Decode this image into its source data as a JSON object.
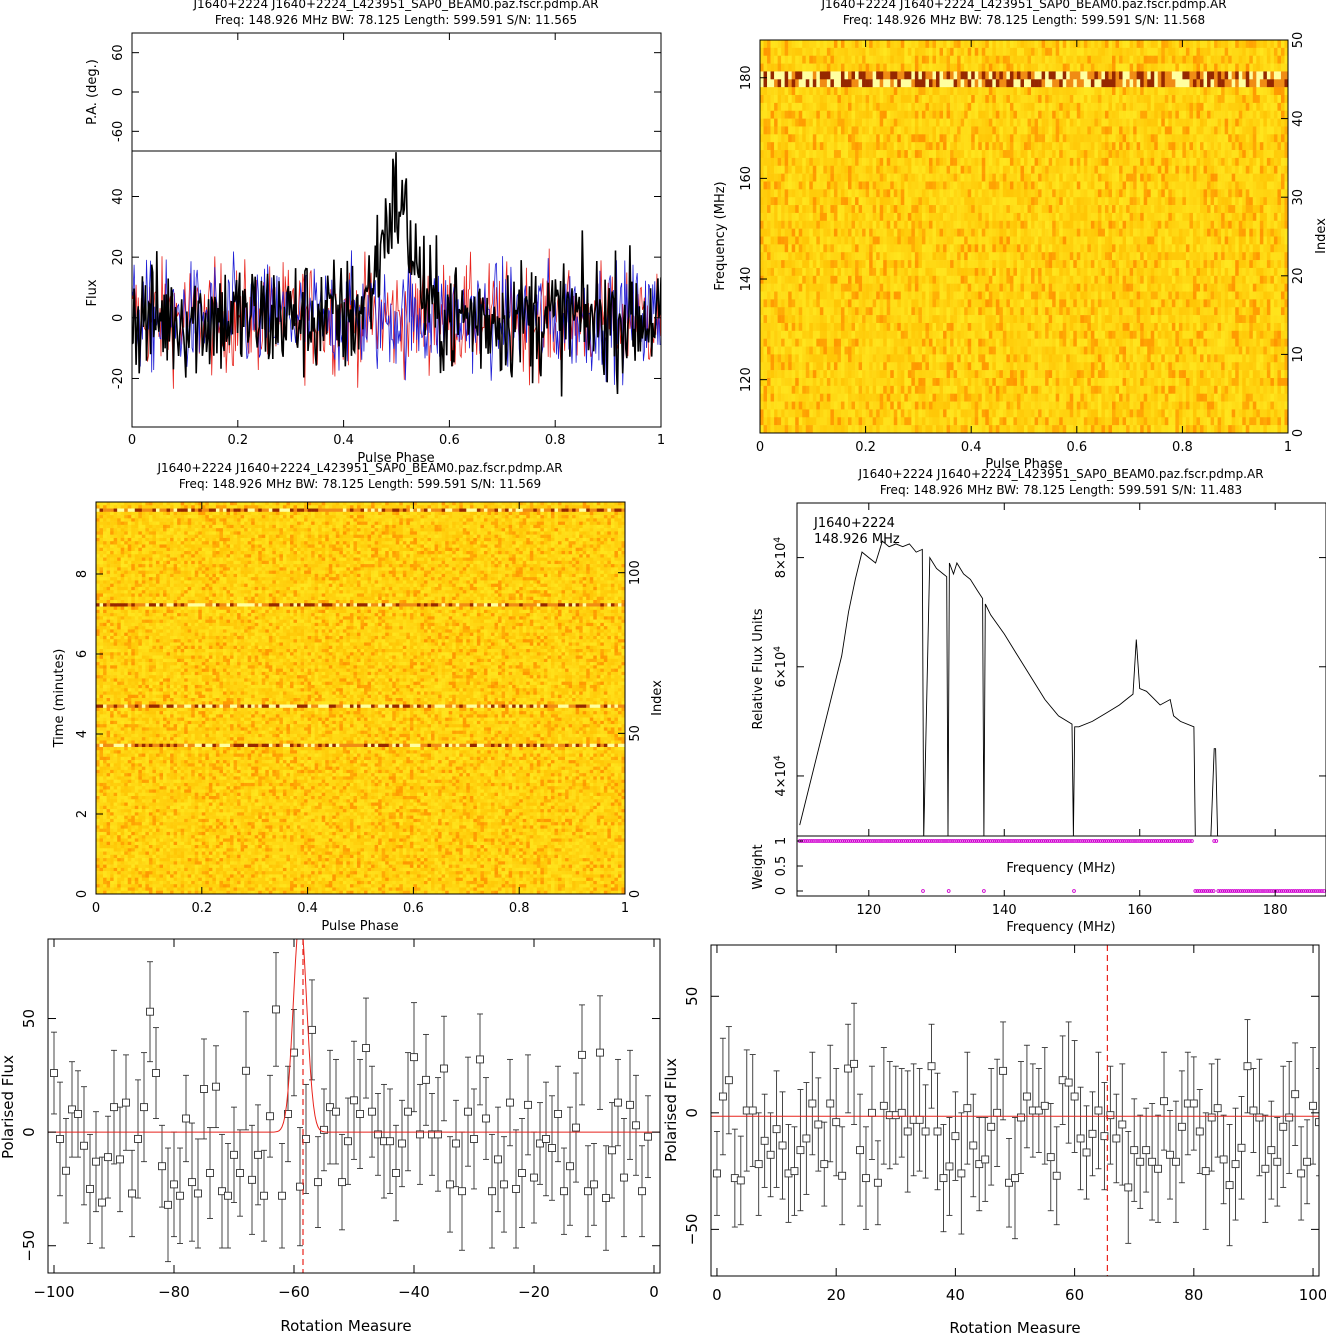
{
  "panels": {
    "profile": {
      "title1": "J1640+2224 J1640+2224_L423951_SAP0_BEAM0.paz.fscr.pdmp.AR",
      "title2": "Freq: 148.926 MHz BW: 78.125 Length: 599.591 S/N: 11.565",
      "pa_label": "P.A. (deg.)",
      "flux_label": "Flux",
      "xlabel": "Pulse Phase"
    },
    "freqphase": {
      "title1": "J1640+2224 J1640+2224_L423951_SAP0_BEAM0.paz.fscr.pdmp.AR",
      "title2": "Freq: 148.926 MHz BW: 78.125 Length: 599.591 S/N: 11.568",
      "ylabel": "Frequency (MHz)",
      "y2label": "Index",
      "xlabel": "Pulse Phase"
    },
    "timephase": {
      "title1": "J1640+2224 J1640+2224_L423951_SAP0_BEAM0.paz.fscr.pdmp.AR",
      "title2": "Freq: 148.926 MHz BW: 78.125 Length: 599.591 S/N: 11.569",
      "ylabel": "Time (minutes)",
      "y2label": "Index",
      "xlabel": "Pulse Phase"
    },
    "bandpass": {
      "title1": "J1640+2224 J1640+2224_L423951_SAP0_BEAM0.paz.fscr.pdmp.AR",
      "title2": "Freq: 148.926 MHz BW: 78.125 Length: 599.591 S/N: 11.483",
      "ylabel": "Relative Flux Units",
      "weight_label": "Weight",
      "inner_xlabel": "Frequency (MHz)",
      "xlabel": "Frequency (MHz)",
      "annot1": "J1640+2224",
      "annot2": "148.926 MHz"
    },
    "rm_neg": {
      "ylabel": "Polarised Flux",
      "xlabel": "Rotation Measure"
    },
    "rm_pos": {
      "ylabel": "Polarised Flux",
      "xlabel": "Rotation Measure"
    }
  },
  "colors": {
    "profile_I": "#000000",
    "profile_L": "#e8231c",
    "profile_V": "#1f1fd6",
    "rm_fit": "#e8231c",
    "weights": "#d000d0"
  },
  "chart_data": [
    {
      "type": "line",
      "panel": "profile",
      "x_range": [
        0,
        1
      ],
      "xticks": [
        "0",
        "0.2",
        "0.4",
        "0.6",
        "0.8",
        "1"
      ],
      "pa_yticks": [
        "-60",
        "0",
        "60"
      ],
      "pa_ylim": [
        -90,
        90
      ],
      "flux_yticks": [
        "-20",
        "0",
        "20",
        "40"
      ],
      "flux_ylim": [
        -36,
        55
      ],
      "series": [
        {
          "stat": "total intensity",
          "noise_sd": 10,
          "peak": {
            "center": 0.5,
            "amplitude": 38,
            "width": 0.03
          }
        },
        {
          "stat": "linear",
          "noise_sd": 9
        },
        {
          "stat": "circular",
          "noise_sd": 9
        }
      ]
    },
    {
      "type": "heatmap",
      "panel": "freqphase",
      "x_range": [
        0,
        1
      ],
      "xticks": [
        "0",
        "0.2",
        "0.4",
        "0.6",
        "0.8",
        "1"
      ],
      "ylim": [
        109.4,
        187.5
      ],
      "yticks": [
        "120",
        "140",
        "160",
        "180"
      ],
      "y2lim": [
        0,
        50
      ],
      "y2ticks": [
        "0",
        "10",
        "20",
        "30",
        "40",
        "50"
      ],
      "rfi_channels_mhz": [
        178.3,
        179.9
      ]
    },
    {
      "type": "heatmap",
      "panel": "timephase",
      "x_range": [
        0,
        1
      ],
      "xticks": [
        "0",
        "0.2",
        "0.4",
        "0.6",
        "0.8",
        "1"
      ],
      "ylim": [
        0,
        9.8
      ],
      "yticks": [
        "0",
        "2",
        "4",
        "6",
        "8"
      ],
      "y2lim": [
        0,
        122
      ],
      "y2ticks": [
        "0",
        "50",
        "100"
      ],
      "rfi_times_min": [
        3.7,
        4.7,
        7.25,
        9.6
      ]
    },
    {
      "type": "line",
      "panel": "bandpass",
      "xlim": [
        109.4,
        187.5
      ],
      "xticks": [
        "120",
        "140",
        "160",
        "180"
      ],
      "ylim": [
        29000,
        90000
      ],
      "yticks": [
        {
          "mant": "4",
          "exp": "4",
          "value": 40000
        },
        {
          "mant": "6",
          "exp": "4",
          "value": 60000
        },
        {
          "mant": "8",
          "exp": "4",
          "value": 80000
        }
      ],
      "weight_yticks": [
        "0",
        "0.5",
        "1"
      ],
      "freq": [
        109.8,
        112,
        114,
        116,
        117,
        118,
        119,
        120,
        121,
        122,
        123,
        124,
        125,
        126,
        127,
        127.9,
        128.1,
        129,
        130,
        131,
        131.5,
        131.7,
        131.9,
        132.5,
        133,
        134,
        135,
        136,
        136.8,
        137,
        137.2,
        138,
        140,
        142,
        144,
        146,
        148,
        150,
        150.2,
        150.4,
        151,
        153,
        155,
        157,
        158,
        159,
        159.5,
        160,
        161,
        163,
        164.5,
        165,
        166,
        168,
        168.2,
        170.5,
        171,
        171.2,
        171.5
      ],
      "flux": [
        31000,
        42000,
        52000,
        62000,
        70000,
        76000,
        81000,
        80000,
        79000,
        83000,
        82000,
        82500,
        82000,
        82500,
        81000,
        81500,
        28500,
        80000,
        78000,
        77000,
        76500,
        29000,
        79000,
        77000,
        79000,
        77000,
        76000,
        74000,
        72500,
        29000,
        71500,
        69500,
        66000,
        62000,
        58000,
        54000,
        51000,
        49500,
        29000,
        49000,
        49000,
        50000,
        51500,
        53000,
        54000,
        55000,
        65000,
        56000,
        55500,
        53000,
        54000,
        51000,
        50000,
        49000,
        29000,
        29000,
        45000,
        45000,
        29000
      ],
      "weights": [
        {
          "from": 109.8,
          "to": 168.0,
          "value": 1
        },
        {
          "from": 168.2,
          "to": 171.0,
          "value": 0
        },
        {
          "from": 171.0,
          "to": 171.6,
          "value": 1
        },
        {
          "from": 171.6,
          "to": 187.5,
          "value": 0
        }
      ],
      "zero_weight_freqs": [
        128,
        131.8,
        137,
        150.3
      ]
    },
    {
      "type": "scatter",
      "panel": "rm_neg",
      "xlim": [
        -101,
        1
      ],
      "xticks": [
        "-100",
        "-80",
        "-60",
        "-40",
        "-20",
        "0"
      ],
      "ylim": [
        -62,
        85
      ],
      "yticks": [
        "-50",
        "0",
        "50"
      ],
      "rm_start": -100,
      "rm_step": 1,
      "marker_rm": -58.5,
      "fit_peak": {
        "center": -59,
        "amplitude": 95,
        "width": 1.1
      },
      "values": [
        26,
        -3,
        -17,
        10,
        8,
        -6,
        -25,
        -13,
        -31,
        -11,
        11,
        -12,
        13,
        -27,
        -3,
        11,
        53,
        26,
        -15,
        -32,
        -23,
        -28,
        6,
        -22,
        -27,
        19,
        -18,
        20,
        -26,
        -28,
        -10,
        -18,
        27,
        -21,
        -10,
        -28,
        7,
        54,
        -28,
        8,
        35,
        -24,
        -3,
        45,
        -22,
        1,
        11,
        9,
        -22,
        -4,
        14,
        8,
        37,
        9,
        -1,
        -4,
        -4,
        -18,
        -5,
        9,
        33,
        -1,
        23,
        -1,
        -1,
        28,
        -23,
        -5,
        -26,
        9,
        -3,
        32,
        6,
        -26,
        -12,
        -23,
        13,
        -25,
        -18,
        12,
        -20,
        -5,
        -3,
        -7,
        8,
        -26,
        -15,
        2,
        34,
        -26,
        -23,
        35,
        -29,
        -8,
        13,
        -20,
        12,
        3,
        -26,
        -2
      ]
    },
    {
      "type": "scatter",
      "panel": "rm_pos",
      "xlim": [
        -1,
        101
      ],
      "xticks": [
        "0",
        "20",
        "40",
        "60",
        "80",
        "100"
      ],
      "ylim": [
        -70,
        72
      ],
      "yticks": [
        "-50",
        "0",
        "50"
      ],
      "rm_start": 0,
      "rm_step": 1,
      "marker_rm": 65.5,
      "fit_level": -1.5,
      "values": [
        -26,
        7,
        14,
        -28,
        -29,
        1,
        1,
        -22,
        -12,
        -18,
        -7,
        -14,
        -26,
        -25,
        -16,
        -11,
        4,
        -5,
        -22,
        4,
        -4,
        -27,
        19,
        21,
        -16,
        -28,
        0,
        -30,
        3,
        -1,
        -1,
        0,
        -8,
        -3,
        -3,
        -8,
        20,
        -8,
        -28,
        -23,
        -10,
        -26,
        2,
        -14,
        -22,
        -20,
        -6,
        0,
        18,
        -30,
        -28,
        -2,
        7,
        1,
        1,
        3,
        -19,
        -27,
        14,
        13,
        7,
        -11,
        -17,
        -9,
        1,
        -10,
        -1,
        -11,
        -5,
        -32,
        -16,
        -21,
        -16,
        -21,
        -24,
        5,
        -18,
        -21,
        -6,
        4,
        4,
        -8,
        -25,
        -2,
        2,
        -20,
        -31,
        -22,
        -15,
        20,
        1,
        -2,
        -24,
        -16,
        -21,
        -6,
        -2,
        8,
        -26,
        -21,
        3,
        -4
      ]
    }
  ]
}
